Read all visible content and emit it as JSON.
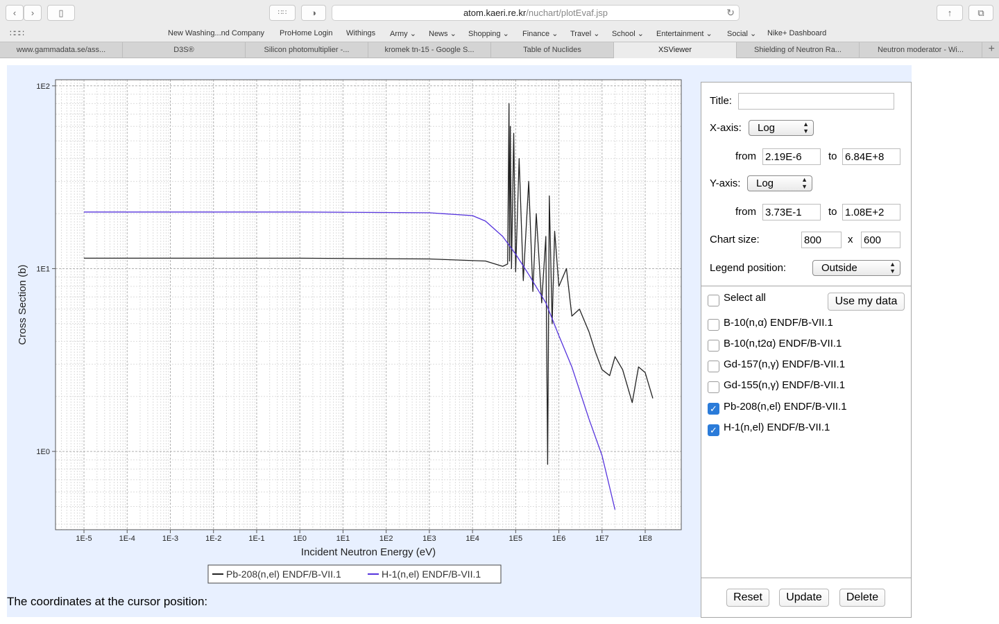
{
  "browser": {
    "url_host": "atom.kaeri.re.kr",
    "url_path": "/nuchart/plotEvaf.jsp",
    "favorites": [
      "New Washing...nd Company",
      "ProHome Login",
      "Withings",
      "Army",
      "News",
      "Shopping",
      "Finance",
      "Travel",
      "School",
      "Entertainment",
      "Social",
      "Nike+ Dashboard"
    ],
    "tabs": [
      "www.gammadata.se/ass...",
      "D3S®",
      "Silicon photomultiplier -...",
      "kromek tn-15 - Google S...",
      "Table of Nuclides",
      "XSViewer",
      "Shielding of Neutron Ra...",
      "Neutron moderator - Wi..."
    ],
    "active_tab": 5
  },
  "chart_data": {
    "type": "line",
    "xlabel": "Incident Neutron Energy (eV)",
    "ylabel": "Cross Section (b)",
    "x_scale": "log",
    "y_scale": "log",
    "xlim": [
      2.19e-06,
      684000000.0
    ],
    "ylim": [
      0.373,
      108
    ],
    "x_ticks": [
      "1E-5",
      "1E-4",
      "1E-3",
      "1E-2",
      "1E-1",
      "1E0",
      "1E1",
      "1E2",
      "1E3",
      "1E4",
      "1E5",
      "1E6",
      "1E7",
      "1E8"
    ],
    "y_ticks": [
      "1E0",
      "1E1",
      "1E2"
    ],
    "grid": true,
    "legend": "bottom",
    "series": [
      {
        "name": "Pb-208(n,el) ENDF/B-VII.1",
        "color": "#222222",
        "x": [
          1e-05,
          1,
          1000,
          20000,
          50000,
          65000,
          70000,
          72000,
          75000,
          80000,
          90000,
          100000,
          120000,
          150000,
          200000,
          250000,
          300000,
          400000,
          500000,
          550000,
          600000,
          700000,
          800000,
          1000000,
          1500000,
          2000000,
          3000000,
          5000000,
          7000000,
          10000000,
          15000000,
          20000000,
          30000000,
          50000000,
          70000000,
          100000000,
          150000000
        ],
        "y": [
          11.4,
          11.4,
          11.3,
          11.0,
          10.3,
          10.6,
          80,
          11.0,
          60,
          10.0,
          55,
          9.6,
          40,
          8.6,
          30,
          7.5,
          20,
          6.5,
          15,
          0.85,
          25,
          5.0,
          16,
          8.0,
          10,
          5.5,
          6.0,
          4.5,
          3.5,
          2.8,
          2.6,
          3.3,
          2.8,
          1.85,
          2.9,
          2.7,
          1.95
        ]
      },
      {
        "name": "H-1(n,el) ENDF/B-VII.1",
        "color": "#5533dd",
        "x": [
          1e-05,
          1,
          1000,
          10000,
          20000,
          50000,
          100000,
          200000,
          500000,
          1000000,
          2000000,
          5000000,
          10000000,
          20000000
        ],
        "y": [
          20.4,
          20.4,
          20.2,
          19.5,
          18.2,
          15.0,
          12.0,
          9.3,
          6.5,
          4.3,
          2.9,
          1.5,
          0.95,
          0.48
        ]
      }
    ]
  },
  "page": {
    "cursor_label": "The coordinates at the cursor position:"
  },
  "panel": {
    "title_label": "Title:",
    "title_value": "",
    "xaxis_label": "X-axis:",
    "xaxis_value": "Log",
    "x_from_label": "from",
    "x_from": "2.19E-6",
    "x_to_label": "to",
    "x_to": "6.84E+8",
    "yaxis_label": "Y-axis:",
    "yaxis_value": "Log",
    "y_from_label": "from",
    "y_from": "3.73E-1",
    "y_to_label": "to",
    "y_to": "1.08E+2",
    "chart_size_label": "Chart size:",
    "chart_w": "800",
    "chart_x": "x",
    "chart_h": "600",
    "legend_label": "Legend position:",
    "legend_value": "Outside",
    "select_all": "Select all",
    "use_my_data": "Use my data",
    "datasets": [
      {
        "label": "B-10(n,α) ENDF/B-VII.1",
        "checked": false
      },
      {
        "label": "B-10(n,t2α) ENDF/B-VII.1",
        "checked": false
      },
      {
        "label": "Gd-157(n,γ) ENDF/B-VII.1",
        "checked": false
      },
      {
        "label": "Gd-155(n,γ) ENDF/B-VII.1",
        "checked": false
      },
      {
        "label": "Pb-208(n,el) ENDF/B-VII.1",
        "checked": true
      },
      {
        "label": "H-1(n,el) ENDF/B-VII.1",
        "checked": true
      }
    ],
    "reset": "Reset",
    "update": "Update",
    "delete": "Delete"
  }
}
